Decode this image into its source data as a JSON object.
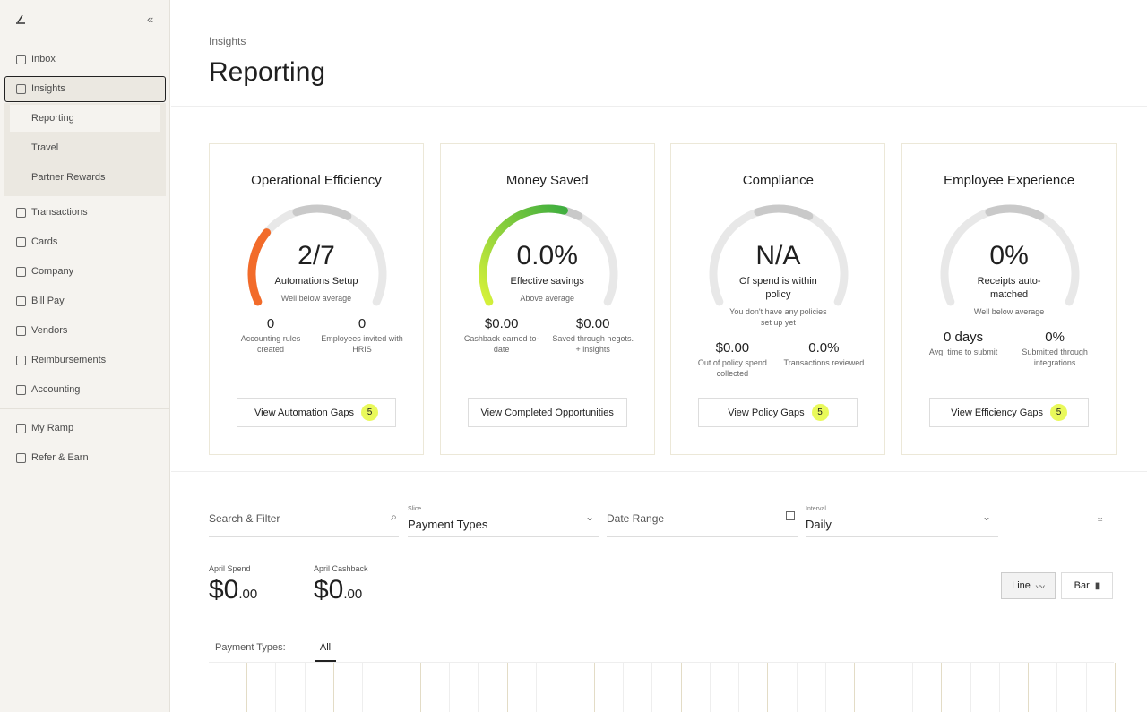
{
  "sidebar": {
    "top": [
      "Inbox"
    ],
    "active": "Insights",
    "sub": [
      "Reporting",
      "Travel",
      "Partner Rewards"
    ],
    "nav": [
      "Transactions",
      "Cards",
      "Company",
      "Bill Pay",
      "Vendors",
      "Reimbursements",
      "Accounting"
    ],
    "bottom": [
      "My Ramp",
      "Refer & Earn"
    ]
  },
  "header": {
    "breadcrumb": "Insights",
    "title": "Reporting"
  },
  "cards": [
    {
      "title": "Operational Efficiency",
      "value": "2/7",
      "caption": "Automations Setup",
      "benchmark": "Well below average",
      "stats": [
        {
          "value": "0",
          "label": "Accounting rules created"
        },
        {
          "value": "0",
          "label": "Employees invited with HRIS"
        }
      ],
      "button": "View Automation Gaps",
      "badge": "5"
    },
    {
      "title": "Money Saved",
      "value": "0.0%",
      "caption": "Effective savings",
      "benchmark": "Above average",
      "stats": [
        {
          "value": "$0.00",
          "label": "Cashback earned to-date"
        },
        {
          "value": "$0.00",
          "label": "Saved through negots. + insights"
        }
      ],
      "button": "View Completed Opportunities"
    },
    {
      "title": "Compliance",
      "value": "N/A",
      "caption": "Of spend is within policy",
      "benchmark": "You don't have any policies set up yet",
      "stats": [
        {
          "value": "$0.00",
          "label": "Out of policy spend collected"
        },
        {
          "value": "0.0%",
          "label": "Transactions reviewed"
        }
      ],
      "button": "View Policy Gaps",
      "badge": "5"
    },
    {
      "title": "Employee Experience",
      "value": "0%",
      "caption": "Receipts auto-matched",
      "benchmark": "Well below average",
      "stats": [
        {
          "value": "0 days",
          "label": "Avg. time to submit"
        },
        {
          "value": "0%",
          "label": "Submitted through integrations"
        }
      ],
      "button": "View Efficiency Gaps",
      "badge": "5"
    }
  ],
  "filters": {
    "search": "Search & Filter",
    "slice_label": "Slice",
    "slice": "Payment Types",
    "date": "Date Range",
    "interval_label": "Interval",
    "interval": "Daily"
  },
  "summary": [
    {
      "label": "April Spend",
      "value": "$0",
      "cents": ".00"
    },
    {
      "label": "April Cashback",
      "value": "$0",
      "cents": ".00"
    }
  ],
  "view_toggle": [
    "Line",
    "Bar"
  ],
  "tabs": {
    "label": "Payment Types:",
    "active": "All"
  }
}
